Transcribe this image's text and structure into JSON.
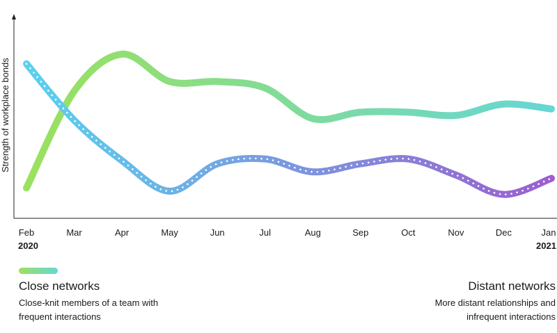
{
  "chart_data": {
    "type": "line",
    "ylabel": "Strength of workplace bonds",
    "x": [
      "Feb",
      "Mar",
      "Apr",
      "May",
      "Jun",
      "Jul",
      "Aug",
      "Sep",
      "Oct",
      "Nov",
      "Dec",
      "Jan"
    ],
    "year_labels": {
      "start": "2020",
      "end": "2021"
    },
    "ylim": [
      0,
      100
    ],
    "grid": false,
    "legend": "bottom",
    "series": [
      {
        "name": "Close networks",
        "description": "Close-knit members of a team with frequent interactions",
        "values": [
          5,
          65,
          88,
          71,
          71,
          67,
          48,
          52,
          52,
          50,
          57,
          54
        ],
        "color_start": "#9be15d",
        "color_end": "#66d6d6",
        "style": "solid"
      },
      {
        "name": "Distant networks",
        "description": "More distant relationships and infrequent interactions",
        "values": [
          82,
          47,
          22,
          3,
          20,
          23,
          15,
          20,
          23,
          13,
          1,
          11
        ],
        "color_start": "#5ad2ee",
        "color_end": "#9b5fcf",
        "style": "dotted"
      }
    ]
  }
}
